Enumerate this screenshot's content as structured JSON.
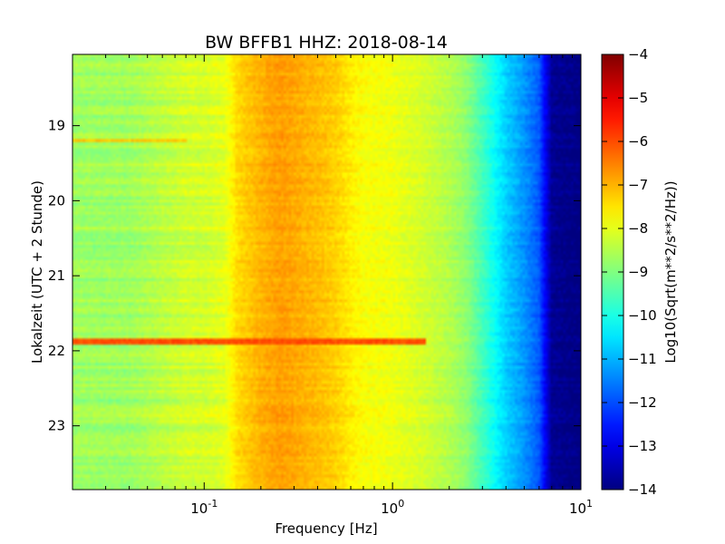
{
  "chart_data": {
    "type": "heatmap",
    "title": "BW BFFB1 HHZ: 2018-08-14",
    "xlabel": "Frequency [Hz]",
    "ylabel": "Lokalzeit (UTC + 2 Stunde)",
    "x_scale": "log",
    "xlim": [
      0.02,
      10
    ],
    "ylim": [
      23.85,
      18.05
    ],
    "x_ticks": [
      {
        "value": 0.1,
        "base": "10",
        "exp": "-1"
      },
      {
        "value": 1,
        "base": "10",
        "exp": "0"
      },
      {
        "value": 10,
        "base": "10",
        "exp": "1"
      }
    ],
    "y_ticks": [
      {
        "value": 19,
        "label": "19"
      },
      {
        "value": 20,
        "label": "20"
      },
      {
        "value": 21,
        "label": "21"
      },
      {
        "value": 22,
        "label": "22"
      },
      {
        "value": 23,
        "label": "23"
      }
    ],
    "colorbar": {
      "label": "Log10(Sqrt(m**2/s**2/Hz))",
      "range": [
        -14,
        -4
      ],
      "colormap": "jet",
      "ticks": [
        {
          "value": -4,
          "label": "−4"
        },
        {
          "value": -5,
          "label": "−5"
        },
        {
          "value": -6,
          "label": "−6"
        },
        {
          "value": -7,
          "label": "−7"
        },
        {
          "value": -8,
          "label": "−8"
        },
        {
          "value": -9,
          "label": "−9"
        },
        {
          "value": -10,
          "label": "−10"
        },
        {
          "value": -11,
          "label": "−11"
        },
        {
          "value": -12,
          "label": "−12"
        },
        {
          "value": -13,
          "label": "−13"
        },
        {
          "value": -14,
          "label": "−14"
        }
      ]
    },
    "spectrum_profile": {
      "frequency_hz": [
        0.02,
        0.04,
        0.06,
        0.08,
        0.1,
        0.13,
        0.15,
        0.2,
        0.25,
        0.3,
        0.4,
        0.5,
        0.6,
        0.7,
        1.0,
        1.5,
        2.0,
        2.5,
        3.0,
        3.5,
        4.0,
        5.0,
        6.0,
        7.0,
        10.0
      ],
      "log_psd": [
        -8.7,
        -8.7,
        -8.4,
        -8.2,
        -8.2,
        -8.0,
        -7.4,
        -7.0,
        -6.8,
        -6.9,
        -7.1,
        -7.3,
        -7.6,
        -7.8,
        -7.9,
        -8.2,
        -8.5,
        -8.9,
        -9.6,
        -10.2,
        -10.7,
        -11.3,
        -11.9,
        -13.8,
        -14.0
      ]
    },
    "events": [
      {
        "time_start": 19.17,
        "time_end": 19.22,
        "freq_max_hz": 0.08,
        "log_psd": -7.2
      },
      {
        "time_start": 21.85,
        "time_end": 21.92,
        "freq_max_hz": 1.5,
        "log_psd": -6.0
      }
    ]
  }
}
